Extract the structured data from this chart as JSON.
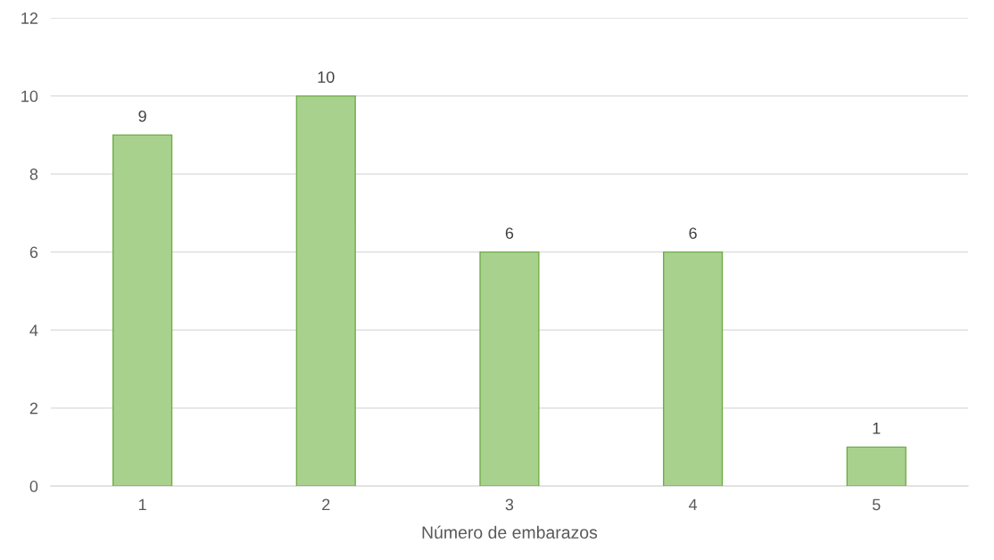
{
  "chart_data": {
    "type": "bar",
    "xlabel": "Número de embarazos",
    "categories": [
      "1",
      "2",
      "3",
      "4",
      "5"
    ],
    "values": [
      9,
      10,
      6,
      6,
      1
    ],
    "color": "#a9d18e",
    "ylim": [
      0,
      12
    ],
    "yticks": [
      0,
      2,
      4,
      6,
      8,
      10,
      12
    ],
    "grid": "y",
    "data_labels": true,
    "legend": false
  }
}
